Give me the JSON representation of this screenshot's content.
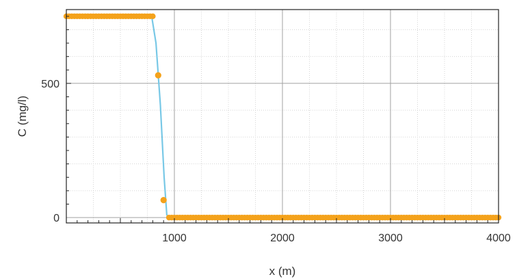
{
  "chart_data": {
    "type": "line",
    "xlabel": "x (m)",
    "ylabel": "C (mg/l)",
    "xlim": [
      0,
      4000
    ],
    "ylim": [
      -20,
      775
    ],
    "x_ticks": [
      1000,
      2000,
      3000,
      4000
    ],
    "x_tick_labels": [
      "1000",
      "2000",
      "3000",
      "4000"
    ],
    "y_ticks": [
      0,
      500
    ],
    "y_tick_labels": [
      "0",
      "500"
    ],
    "grid": true,
    "legend": "none",
    "series": [
      {
        "style": "line",
        "color": "#78c8e6",
        "x": [
          0,
          790,
          830,
          870,
          905,
          930,
          950,
          4000
        ],
        "y": [
          750,
          750,
          650,
          420,
          150,
          10,
          0,
          0
        ]
      },
      {
        "style": "markers",
        "color": "#f4a21b",
        "x_start": 0,
        "x_step": 25,
        "x_end": 4000,
        "plateau_end": 800,
        "high": 750,
        "low": 0,
        "transition": [
          [
            850,
            530
          ],
          [
            900,
            65
          ]
        ]
      }
    ]
  }
}
